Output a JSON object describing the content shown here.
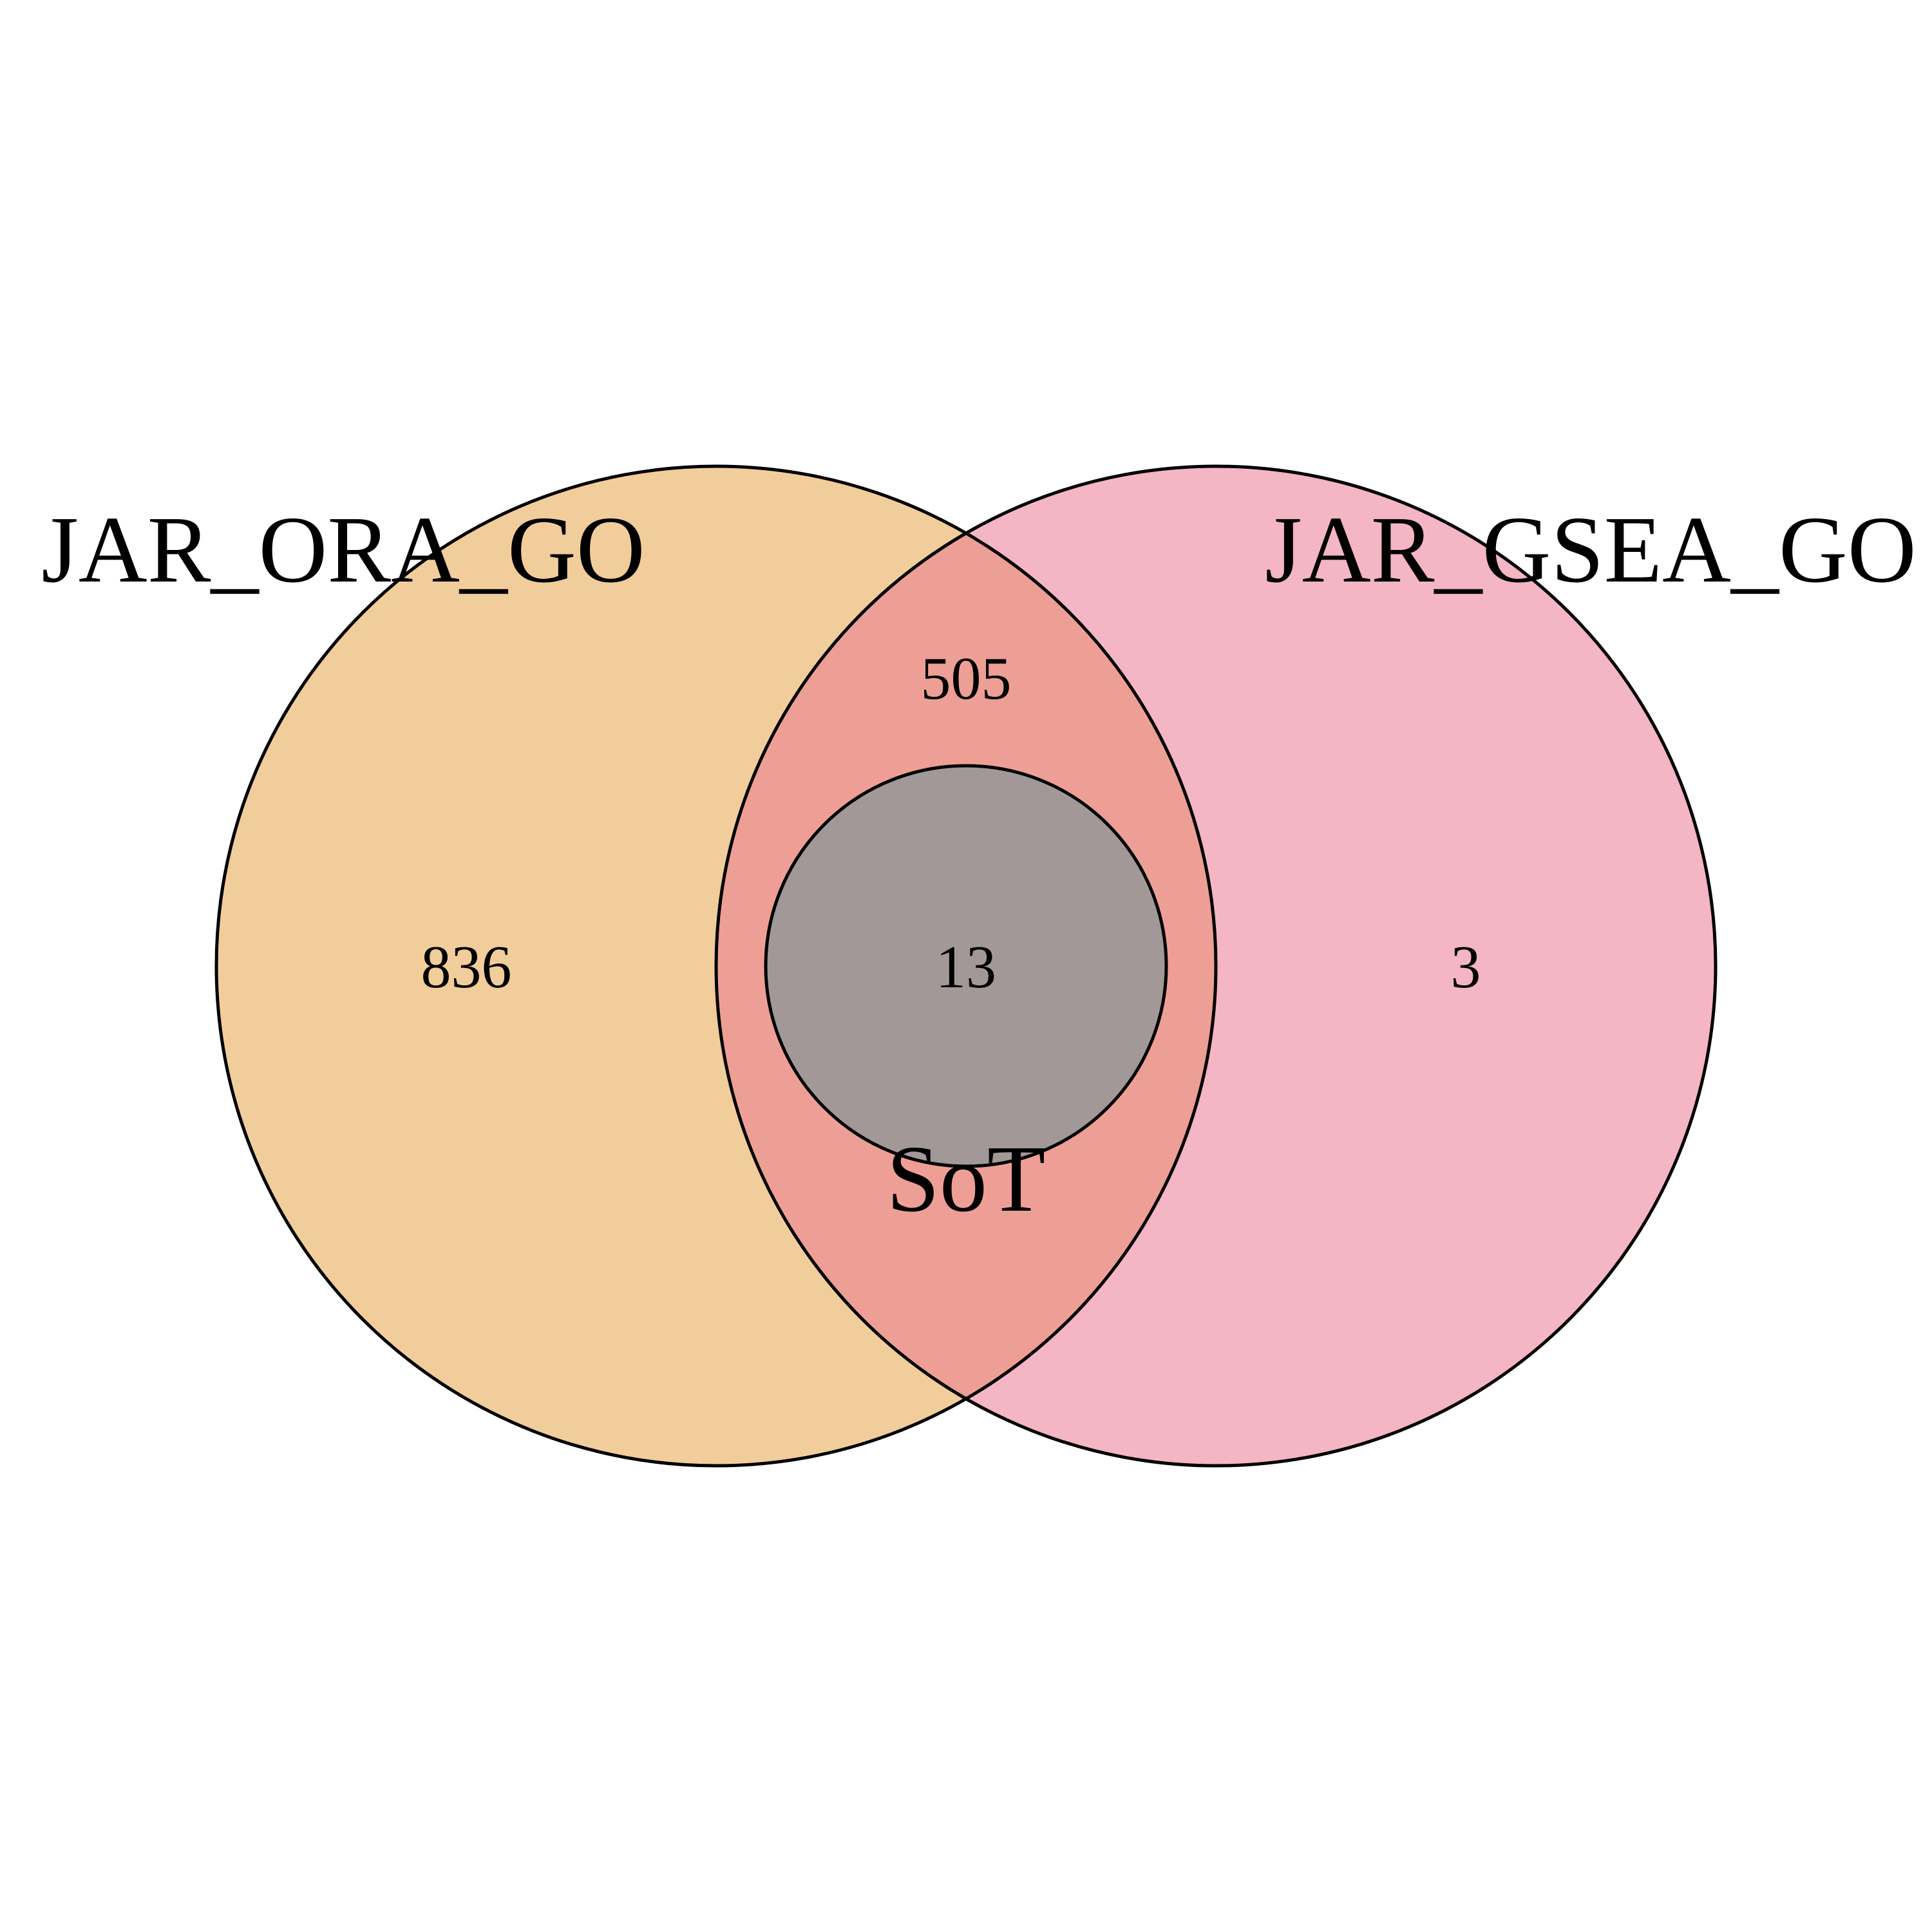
{
  "diagram": {
    "type": "venn",
    "sets": [
      {
        "name": "JAR_ORA_GO",
        "color": "#f2cd9c"
      },
      {
        "name": "JAR_GSEA_GO",
        "color": "#f4b5c5"
      },
      {
        "name": "SoT",
        "color": "#a39898"
      }
    ],
    "overlap_color": "#ee9f95",
    "regions": {
      "ora_only": "836",
      "ora_gsea_not_sot": "505",
      "all_three": "13",
      "gsea_only": "3"
    }
  }
}
